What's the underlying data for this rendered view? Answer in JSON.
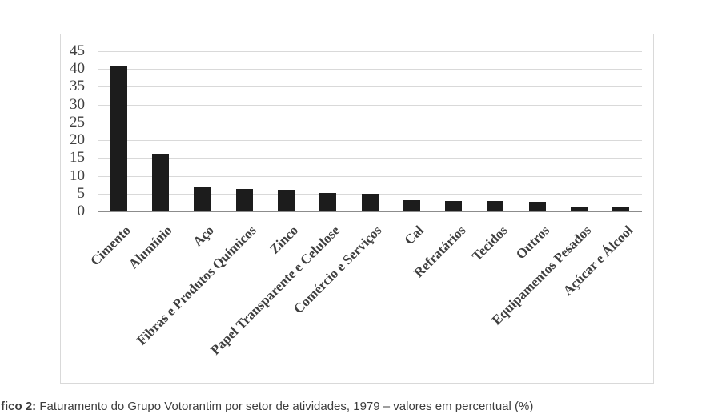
{
  "chart_data": {
    "type": "bar",
    "title": "",
    "xlabel": "",
    "ylabel": "",
    "categories": [
      "Cimento",
      "Alumínio",
      "Aço",
      "Fibras e Produtos Químicos",
      "Zinco",
      "Papel Transparente e Celulose",
      "Comércio e Serviços",
      "Cal",
      "Refratários",
      "Tecidos",
      "Outros",
      "Equipamentos Pesados",
      "Açúcar e Álcool"
    ],
    "values": [
      40.9,
      16.3,
      6.8,
      6.4,
      6.0,
      5.1,
      5.0,
      3.1,
      3.0,
      2.9,
      2.8,
      1.3,
      1.1
    ],
    "ylim": [
      0,
      45
    ],
    "ytick_step": 5,
    "yticks": [
      0,
      5,
      10,
      15,
      20,
      25,
      30,
      35,
      40,
      45
    ],
    "grid": "horizontal",
    "legend": "none",
    "bar_color": "#1c1c1c",
    "category_label_rotation_deg": -45
  },
  "caption": {
    "bold": "fico 2:",
    "text": " Faturamento do Grupo Votorantim por setor de atividades, 1979 – valores em percentual (%)"
  },
  "colors": {
    "background": "#ffffff",
    "frame_border": "#d9d9d9",
    "gridline": "#d9d9d9",
    "baseline": "#8c8c8c",
    "axis_text": "#3f3f3f",
    "bar": "#1c1c1c",
    "caption_text": "#3d3d3d"
  }
}
